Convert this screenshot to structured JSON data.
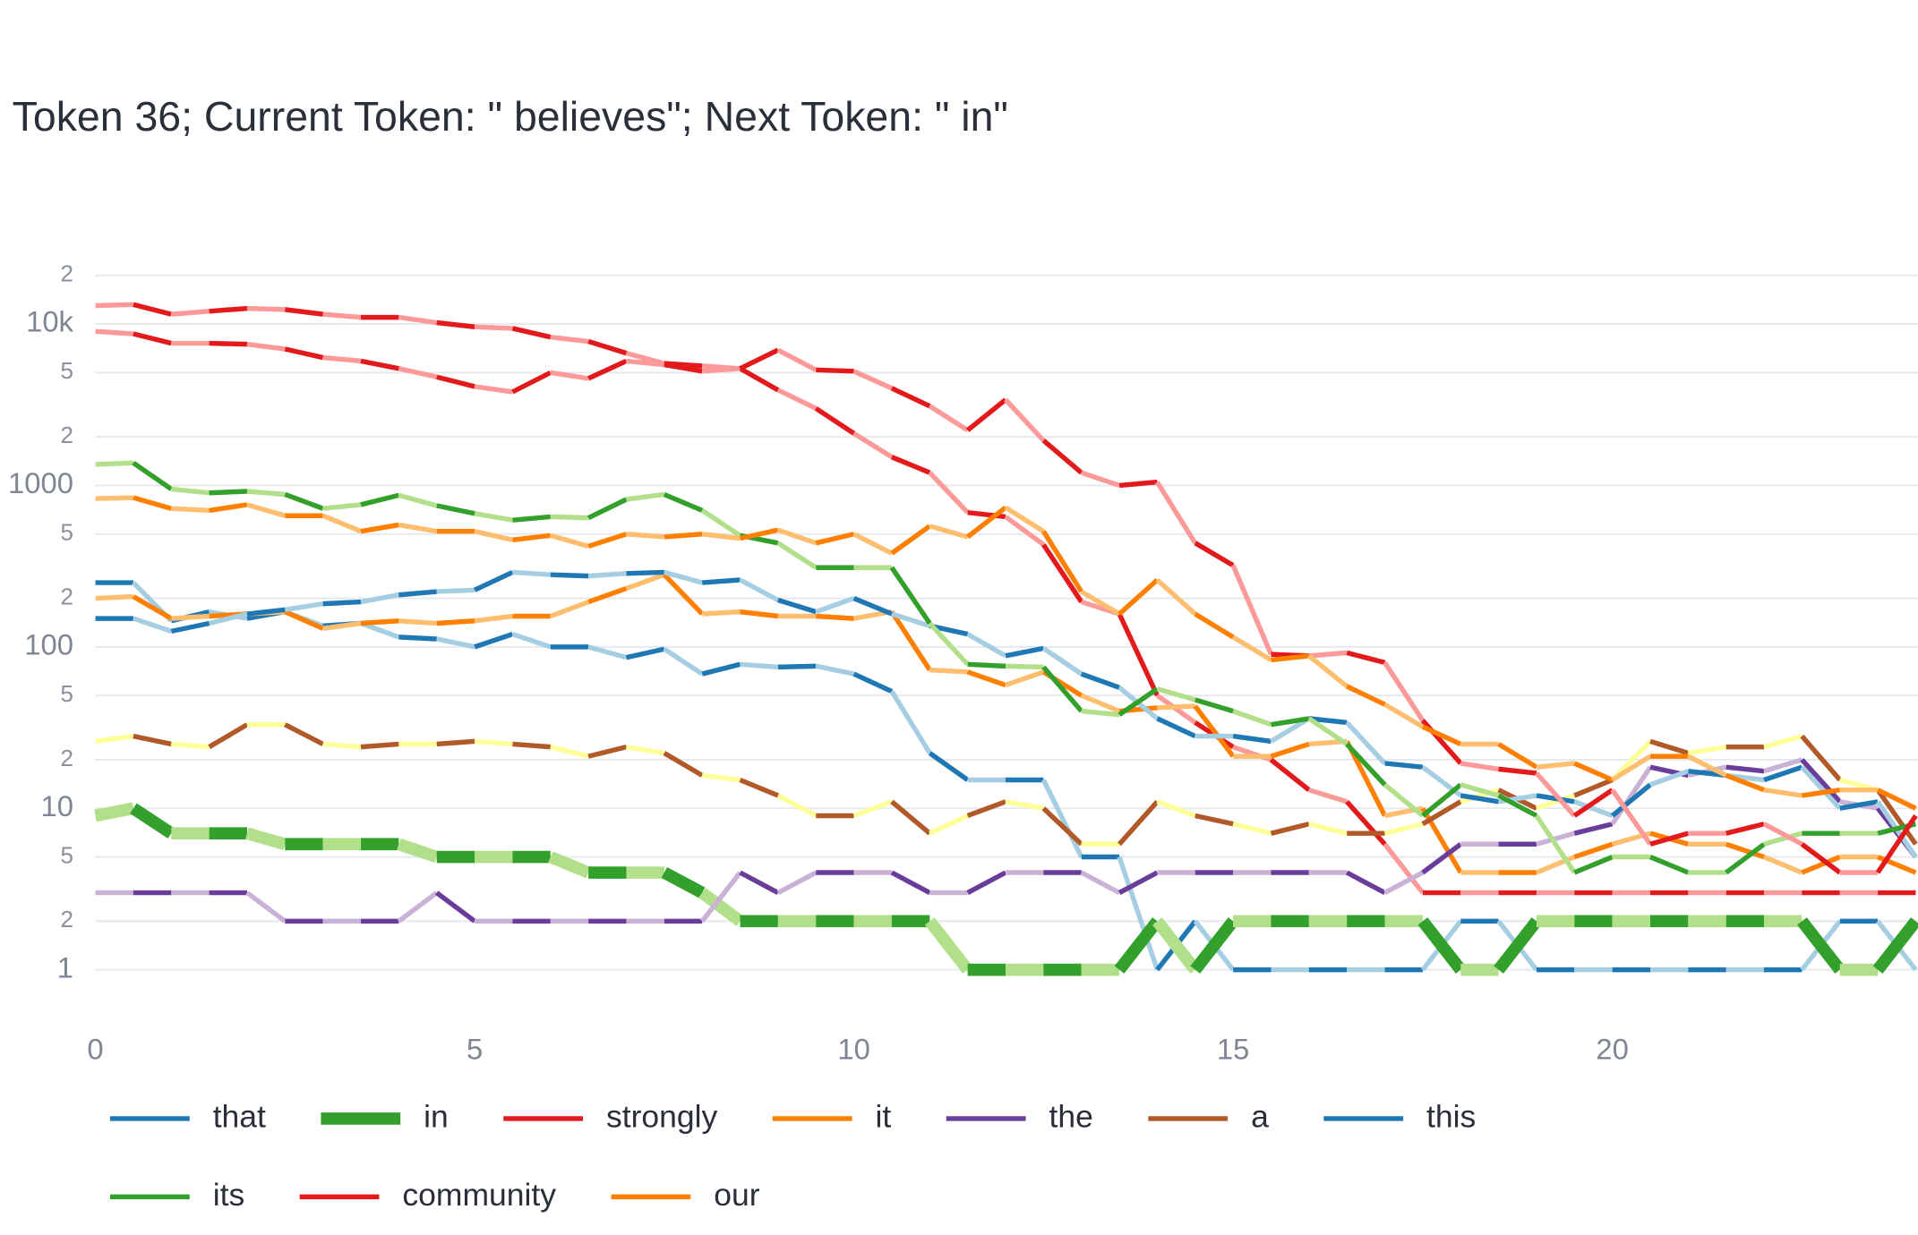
{
  "chart_data": {
    "type": "line",
    "title": "Token 36; Current Token: \" believes\"; Next Token: \" in\"",
    "log_y": true,
    "grid": true,
    "legend_position": "bottom",
    "xlim": [
      0,
      24.03
    ],
    "xticks": [
      0,
      5,
      10,
      15,
      20
    ],
    "ylim": [
      0.5,
      28000
    ],
    "yticks": [
      1,
      2,
      5,
      10,
      {
        "value": 20,
        "label": "2"
      },
      {
        "value": 50,
        "label": "5"
      },
      100,
      {
        "value": 200,
        "label": "2"
      },
      {
        "value": 500,
        "label": "5"
      },
      1000,
      {
        "value": 2000,
        "label": "2"
      },
      {
        "value": 5000,
        "label": "5"
      },
      {
        "value": 10000,
        "label": "10k"
      },
      {
        "value": 20000,
        "label": "2"
      }
    ],
    "x": [
      0,
      0.5,
      1,
      1.5,
      2,
      2.5,
      3,
      3.5,
      4,
      4.5,
      5,
      5.5,
      6,
      6.5,
      7,
      7.5,
      8,
      8.5,
      9,
      9.5,
      10,
      10.5,
      11,
      11.5,
      12,
      12.5,
      13,
      13.5,
      14,
      14.5,
      15,
      15.5,
      16,
      16.5,
      17,
      17.5,
      18,
      18.5,
      19,
      19.5,
      20,
      20.5,
      21,
      21.5,
      22,
      22.5,
      23,
      23.5,
      24
    ],
    "series": [
      {
        "name": "that",
        "color": "#1f78b4",
        "segment_colors": [
          "#1f78b4",
          "#a6cee3"
        ],
        "width": 4,
        "values": [
          250,
          250,
          145,
          165,
          150,
          165,
          135,
          140,
          115,
          112,
          100,
          120,
          100,
          100,
          86,
          97,
          68,
          78,
          75,
          76,
          68,
          53,
          22,
          15,
          15,
          15,
          5,
          5,
          1,
          2,
          1,
          1,
          1,
          1,
          1,
          1,
          2,
          2,
          1,
          1,
          1,
          1,
          1,
          1,
          1,
          1,
          2,
          2,
          1
        ]
      },
      {
        "name": "in",
        "color": "#33a02c",
        "segment_colors": [
          "#b2df8a",
          "#33a02c"
        ],
        "width": 10,
        "values": [
          9,
          10,
          7,
          7,
          7,
          6,
          6,
          6,
          6,
          5,
          5,
          5,
          5,
          4,
          4,
          4,
          3,
          2,
          2,
          2,
          2,
          2,
          2,
          1,
          1,
          1,
          1,
          1,
          2,
          1,
          2,
          2,
          2,
          2,
          2,
          2,
          1,
          1,
          2,
          2,
          2,
          2,
          2,
          2,
          2,
          2,
          1,
          1,
          2
        ]
      },
      {
        "name": "strongly",
        "color": "#e31a1c",
        "segment_colors": [
          "#fb9a99",
          "#e31a1c"
        ],
        "width": 4,
        "values": [
          9000,
          8700,
          7600,
          7600,
          7500,
          7000,
          6200,
          5900,
          5300,
          4700,
          4100,
          3800,
          5000,
          4600,
          5900,
          5600,
          5100,
          5300,
          3900,
          3000,
          2100,
          1500,
          1200,
          680,
          640,
          430,
          190,
          160,
          50,
          34,
          24,
          20,
          13,
          11,
          6,
          3,
          3,
          3,
          3,
          3,
          3,
          3,
          3,
          3,
          3,
          3,
          3,
          3,
          3
        ]
      },
      {
        "name": "it",
        "color": "#ff7f00",
        "segment_colors": [
          "#fdbf6f",
          "#ff7f00"
        ],
        "width": 4,
        "values": [
          200,
          205,
          150,
          155,
          160,
          165,
          130,
          140,
          145,
          140,
          145,
          155,
          155,
          190,
          230,
          280,
          160,
          165,
          155,
          155,
          150,
          165,
          72,
          70,
          58,
          70,
          50,
          40,
          42,
          43,
          21,
          21,
          25,
          26,
          9,
          10,
          4,
          4,
          4,
          5,
          6,
          7,
          6,
          6,
          5,
          4,
          5,
          5,
          4
        ]
      },
      {
        "name": "the",
        "color": "#6a3d9a",
        "segment_colors": [
          "#cab2d6",
          "#6a3d9a"
        ],
        "width": 4,
        "values": [
          3,
          3,
          3,
          3,
          3,
          2,
          2,
          2,
          2,
          3,
          2,
          2,
          2,
          2,
          2,
          2,
          2,
          4,
          3,
          4,
          4,
          4,
          3,
          3,
          4,
          4,
          4,
          3,
          4,
          4,
          4,
          4,
          4,
          4,
          3,
          4,
          6,
          6,
          6,
          7,
          8,
          18,
          16,
          18,
          17,
          20,
          11,
          10,
          5
        ]
      },
      {
        "name": "a",
        "color": "#b15928",
        "segment_colors": [
          "#ffff99",
          "#b15928"
        ],
        "width": 4,
        "values": [
          26,
          28,
          25,
          24,
          33,
          33,
          25,
          24,
          25,
          25,
          26,
          25,
          24,
          21,
          24,
          22,
          16,
          15,
          12,
          9,
          9,
          11,
          7,
          9,
          11,
          10,
          6,
          6,
          11,
          9,
          8,
          7,
          8,
          7,
          7,
          8,
          11,
          13,
          10,
          12,
          15,
          26,
          22,
          24,
          24,
          28,
          15,
          13,
          6
        ]
      },
      {
        "name": "this",
        "color": "#1f78b4",
        "segment_colors": [
          "#1f78b4",
          "#a6cee3"
        ],
        "width": 4,
        "values": [
          150,
          150,
          125,
          140,
          160,
          170,
          185,
          190,
          210,
          220,
          225,
          290,
          280,
          275,
          285,
          290,
          250,
          260,
          195,
          165,
          200,
          160,
          135,
          120,
          88,
          98,
          68,
          56,
          36,
          28,
          28,
          26,
          36,
          34,
          19,
          18,
          12,
          11,
          12,
          11,
          9,
          14,
          17,
          16,
          15,
          18,
          10,
          11,
          5
        ]
      },
      {
        "name": "its",
        "color": "#33a02c",
        "segment_colors": [
          "#b2df8a",
          "#33a02c"
        ],
        "width": 4,
        "values": [
          1350,
          1380,
          950,
          900,
          920,
          880,
          720,
          760,
          870,
          750,
          670,
          610,
          640,
          630,
          820,
          880,
          700,
          490,
          440,
          310,
          310,
          310,
          140,
          78,
          76,
          75,
          40,
          38,
          55,
          47,
          40,
          33,
          36,
          25,
          14,
          9,
          14,
          12,
          9,
          4,
          5,
          5,
          4,
          4,
          6,
          7,
          7,
          7,
          8
        ]
      },
      {
        "name": "community",
        "color": "#e31a1c",
        "segment_colors": [
          "#fb9a99",
          "#e31a1c"
        ],
        "width": 4,
        "values": [
          13000,
          13200,
          11500,
          12000,
          12500,
          12300,
          11500,
          11000,
          11000,
          10200,
          9600,
          9400,
          8300,
          7800,
          6600,
          5700,
          5500,
          5300,
          6900,
          5200,
          5100,
          4000,
          3100,
          2200,
          3400,
          1900,
          1200,
          1000,
          1050,
          440,
          320,
          90,
          88,
          92,
          80,
          35,
          19,
          17.5,
          16.5,
          9,
          13,
          6,
          7,
          7,
          8,
          6,
          4,
          4,
          9
        ]
      },
      {
        "name": "our",
        "color": "#ff7f00",
        "segment_colors": [
          "#fdbf6f",
          "#ff7f00"
        ],
        "width": 4,
        "values": [
          830,
          840,
          720,
          700,
          760,
          650,
          650,
          520,
          570,
          520,
          520,
          460,
          490,
          420,
          500,
          480,
          500,
          470,
          530,
          440,
          500,
          380,
          560,
          480,
          730,
          520,
          220,
          160,
          260,
          160,
          115,
          83,
          88,
          57,
          44,
          32,
          25,
          25,
          18,
          19,
          15,
          21,
          21,
          16,
          13,
          12,
          13,
          13,
          10
        ]
      }
    ]
  }
}
